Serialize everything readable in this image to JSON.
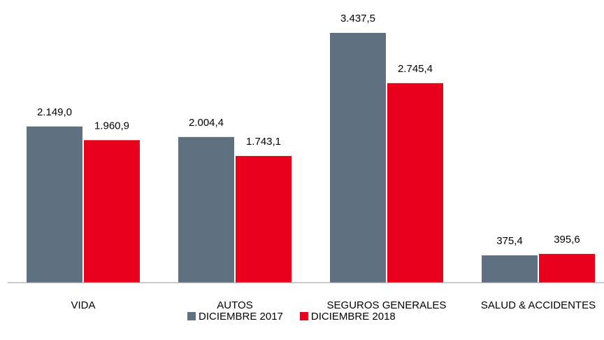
{
  "chart_data": {
    "type": "bar",
    "categories": [
      "VIDA",
      "AUTOS",
      "SEGUROS GENERALES",
      "SALUD & ACCIDENTES"
    ],
    "series": [
      {
        "name": "DICIEMBRE 2017",
        "color": "#5f7080",
        "values": [
          2149.0,
          2004.4,
          3437.5,
          375.4
        ],
        "value_labels": [
          "2.149,0",
          "2.004,4",
          "3.437,5",
          "375,4"
        ]
      },
      {
        "name": "DICIEMBRE 2018",
        "color": "#e8001c",
        "values": [
          1960.9,
          1743.1,
          2745.4,
          395.6
        ],
        "value_labels": [
          "1.960,9",
          "1.743,1",
          "2.745,4",
          "395,6"
        ]
      }
    ],
    "ylim": [
      0,
      3800
    ],
    "legend": "bottom"
  }
}
